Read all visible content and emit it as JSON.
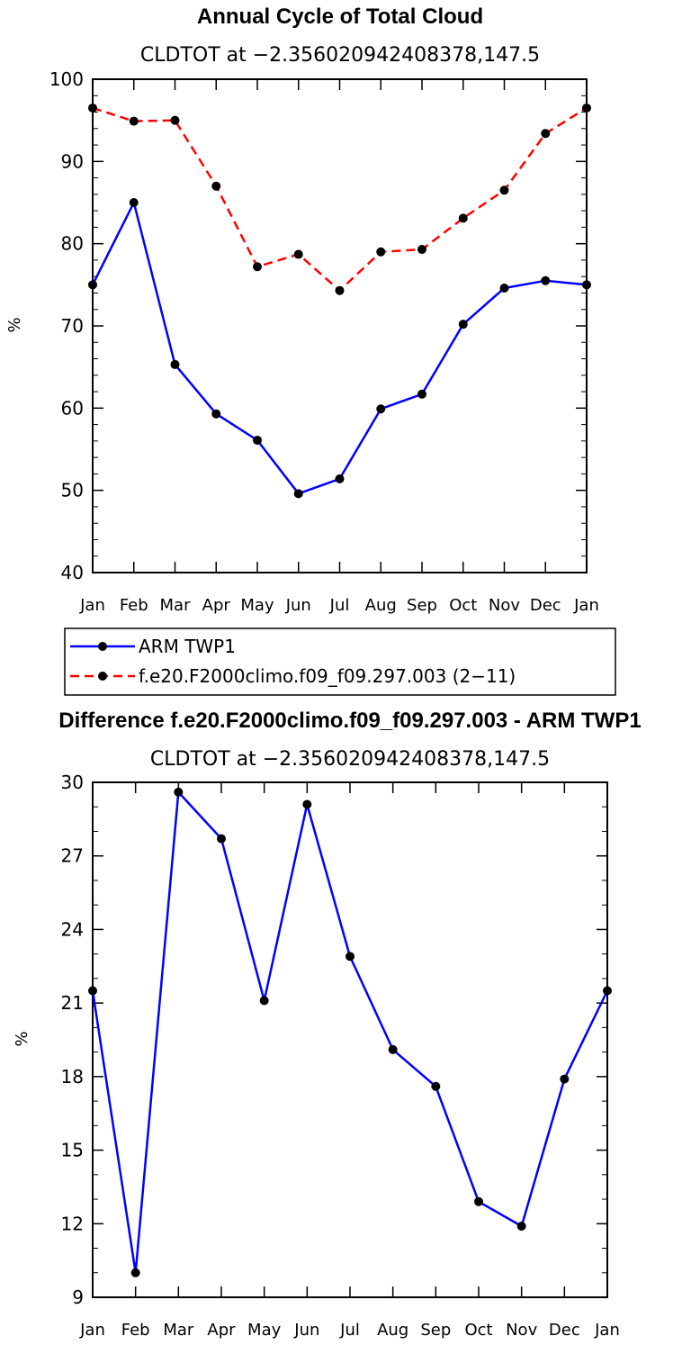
{
  "chart_data": [
    {
      "type": "line",
      "title": "Annual Cycle of Total Cloud",
      "subtitle": "CLDTOT at −2.356020942408378,147.5",
      "ylabel": "%",
      "xlabel": "",
      "categories": [
        "Jan",
        "Feb",
        "Mar",
        "Apr",
        "May",
        "Jun",
        "Jul",
        "Aug",
        "Sep",
        "Oct",
        "Nov",
        "Dec",
        "Jan"
      ],
      "ylim": [
        40,
        100
      ],
      "yticks": [
        40,
        50,
        60,
        70,
        80,
        90,
        100
      ],
      "grid": false,
      "legend": "below",
      "series": [
        {
          "name": "ARM TWP1",
          "color": "#0000ff",
          "dash": "solid",
          "values": [
            75.0,
            85.0,
            65.3,
            59.3,
            56.1,
            49.6,
            51.4,
            59.9,
            61.7,
            70.2,
            74.6,
            75.5,
            75.0
          ]
        },
        {
          "name": "f.e20.F2000climo.f09_f09.297.003 (2−11)",
          "color": "#ff0000",
          "dash": "dashed",
          "values": [
            96.5,
            94.9,
            95.0,
            87.0,
            77.2,
            78.7,
            74.3,
            79.0,
            79.3,
            83.1,
            86.5,
            93.4,
            96.5
          ]
        }
      ]
    },
    {
      "type": "line",
      "title": "Difference f.e20.F2000climo.f09_f09.297.003 - ARM TWP1",
      "subtitle": "CLDTOT at −2.356020942408378,147.5",
      "ylabel": "%",
      "xlabel": "",
      "categories": [
        "Jan",
        "Feb",
        "Mar",
        "Apr",
        "May",
        "Jun",
        "Jul",
        "Aug",
        "Sep",
        "Oct",
        "Nov",
        "Dec",
        "Jan"
      ],
      "ylim": [
        9,
        30
      ],
      "yticks": [
        9,
        12,
        15,
        18,
        21,
        24,
        27,
        30
      ],
      "grid": false,
      "series": [
        {
          "color": "#0000ff",
          "dash": "solid",
          "values": [
            21.5,
            10.0,
            29.6,
            27.7,
            21.1,
            29.1,
            22.9,
            19.1,
            17.6,
            12.9,
            11.9,
            17.9,
            21.5
          ]
        }
      ]
    }
  ]
}
